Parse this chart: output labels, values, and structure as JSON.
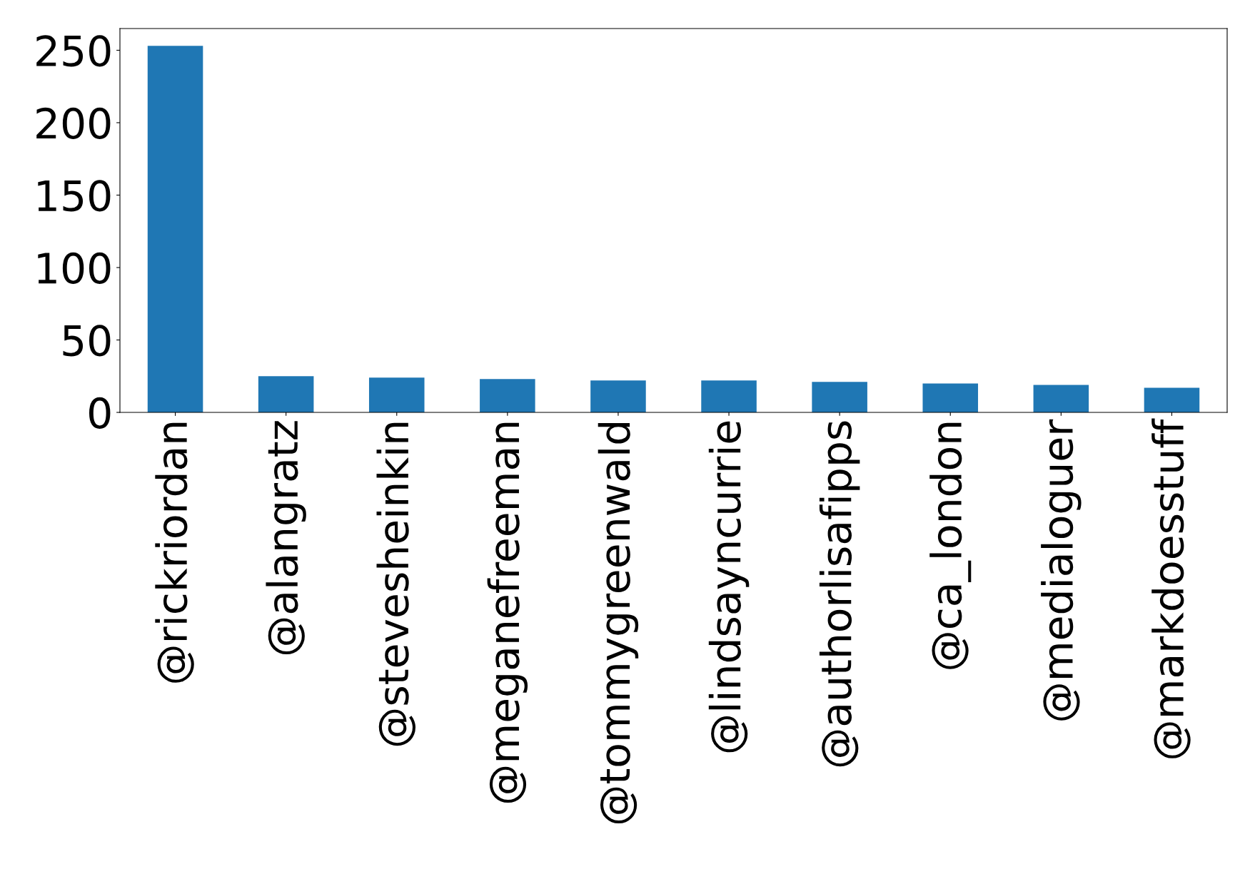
{
  "chart_data": {
    "type": "bar",
    "categories": [
      "@rickriordan",
      "@alangratz",
      "@stevesheinkin",
      "@meganefreeman",
      "@tommygreenwald",
      "@lindsayncurrie",
      "@authorlisafipps",
      "@ca_london",
      "@medialoguer",
      "@markdoesstuff"
    ],
    "values": [
      253,
      25,
      24,
      23,
      22,
      22,
      21,
      20,
      19,
      17
    ],
    "color": "#1f77b4",
    "ylim": [
      0,
      265
    ],
    "yticks": [
      0,
      50,
      100,
      150,
      200,
      250
    ],
    "grid": false,
    "legend": false
  }
}
